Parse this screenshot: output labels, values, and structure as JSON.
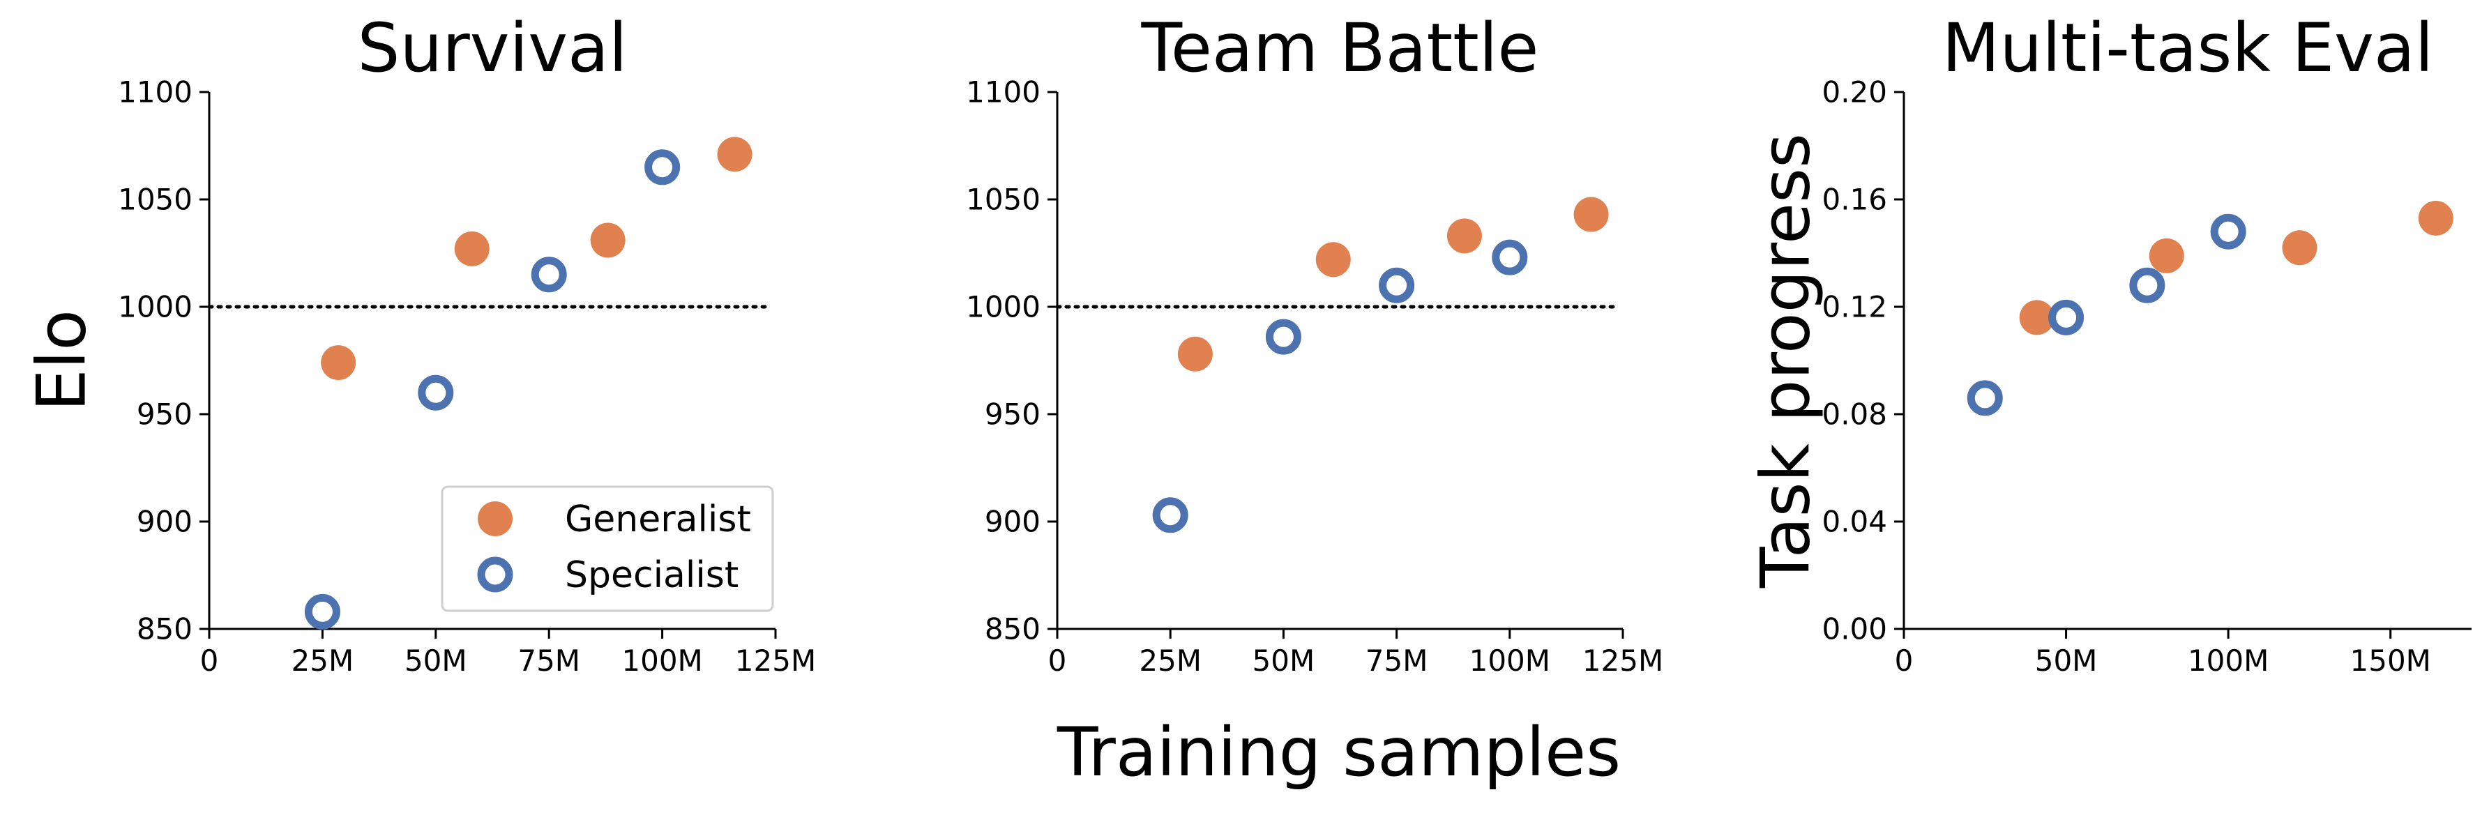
{
  "figure": {
    "shared_xlabel": "Training samples",
    "colors": {
      "generalist": "#E0814F",
      "specialist": "#4C72B0"
    },
    "legend": {
      "placement": "lower-right",
      "in_panel": 0,
      "entries": [
        {
          "label": "Generalist",
          "marker": "filled-circle",
          "series": "generalist"
        },
        {
          "label": "Specialist",
          "marker": "hollow-circle",
          "series": "specialist"
        }
      ]
    }
  },
  "chart_data": [
    {
      "type": "scatter",
      "title": "Survival",
      "ylabel": "Elo",
      "xlabel": "",
      "xlim": [
        0,
        125000000
      ],
      "ylim": [
        850,
        1100
      ],
      "xticks": [
        0,
        25000000,
        50000000,
        75000000,
        100000000,
        125000000
      ],
      "xtick_labels": [
        "0",
        "25M",
        "50M",
        "75M",
        "100M",
        "125M"
      ],
      "yticks": [
        850,
        900,
        950,
        1000,
        1050,
        1100
      ],
      "ytick_labels": [
        "850",
        "900",
        "950",
        "1000",
        "1050",
        "1100"
      ],
      "reference_line": {
        "y": 1000,
        "style": "dotted",
        "x_range": [
          0,
          124000000
        ]
      },
      "series": [
        {
          "name": "Generalist",
          "key": "generalist",
          "x": [
            28500000,
            58000000,
            88000000,
            116000000
          ],
          "y": [
            974,
            1027,
            1031,
            1071
          ]
        },
        {
          "name": "Specialist",
          "key": "specialist",
          "x": [
            25000000,
            50000000,
            75000000,
            100000000
          ],
          "y": [
            858,
            960,
            1015,
            1065
          ]
        }
      ],
      "grid": false
    },
    {
      "type": "scatter",
      "title": "Team Battle",
      "ylabel": "",
      "xlabel": "",
      "xlim": [
        0,
        125000000
      ],
      "ylim": [
        850,
        1100
      ],
      "xticks": [
        0,
        25000000,
        50000000,
        75000000,
        100000000,
        125000000
      ],
      "xtick_labels": [
        "0",
        "25M",
        "50M",
        "75M",
        "100M",
        "125M"
      ],
      "yticks": [
        850,
        900,
        950,
        1000,
        1050,
        1100
      ],
      "ytick_labels": [
        "850",
        "900",
        "950",
        "1000",
        "1050",
        "1100"
      ],
      "reference_line": {
        "y": 1000,
        "style": "dotted",
        "x_range": [
          0,
          124000000
        ]
      },
      "series": [
        {
          "name": "Generalist",
          "key": "generalist",
          "x": [
            30500000,
            61000000,
            90000000,
            118000000
          ],
          "y": [
            978,
            1022,
            1033,
            1043
          ]
        },
        {
          "name": "Specialist",
          "key": "specialist",
          "x": [
            25000000,
            50000000,
            75000000,
            100000000
          ],
          "y": [
            903,
            986,
            1010,
            1023
          ]
        }
      ],
      "grid": false
    },
    {
      "type": "scatter",
      "title": "Multi-task Eval",
      "ylabel": "Task progress",
      "xlabel": "",
      "xlim": [
        0,
        175000000
      ],
      "ylim": [
        0,
        0.2
      ],
      "xticks": [
        0,
        50000000,
        100000000,
        150000000
      ],
      "xtick_labels": [
        "0",
        "50M",
        "100M",
        "150M"
      ],
      "yticks": [
        0,
        0.04,
        0.08,
        0.12,
        0.16,
        0.2
      ],
      "ytick_labels": [
        "0.00",
        "0.04",
        "0.08",
        "0.12",
        "0.16",
        "0.20"
      ],
      "series": [
        {
          "name": "Generalist",
          "key": "generalist",
          "x": [
            41000000,
            81000000,
            122000000,
            164000000
          ],
          "y": [
            0.116,
            0.139,
            0.142,
            0.153
          ]
        },
        {
          "name": "Specialist",
          "key": "specialist",
          "x": [
            25000000,
            50000000,
            75000000,
            100000000
          ],
          "y": [
            0.086,
            0.116,
            0.128,
            0.148
          ]
        }
      ],
      "grid": false
    }
  ]
}
